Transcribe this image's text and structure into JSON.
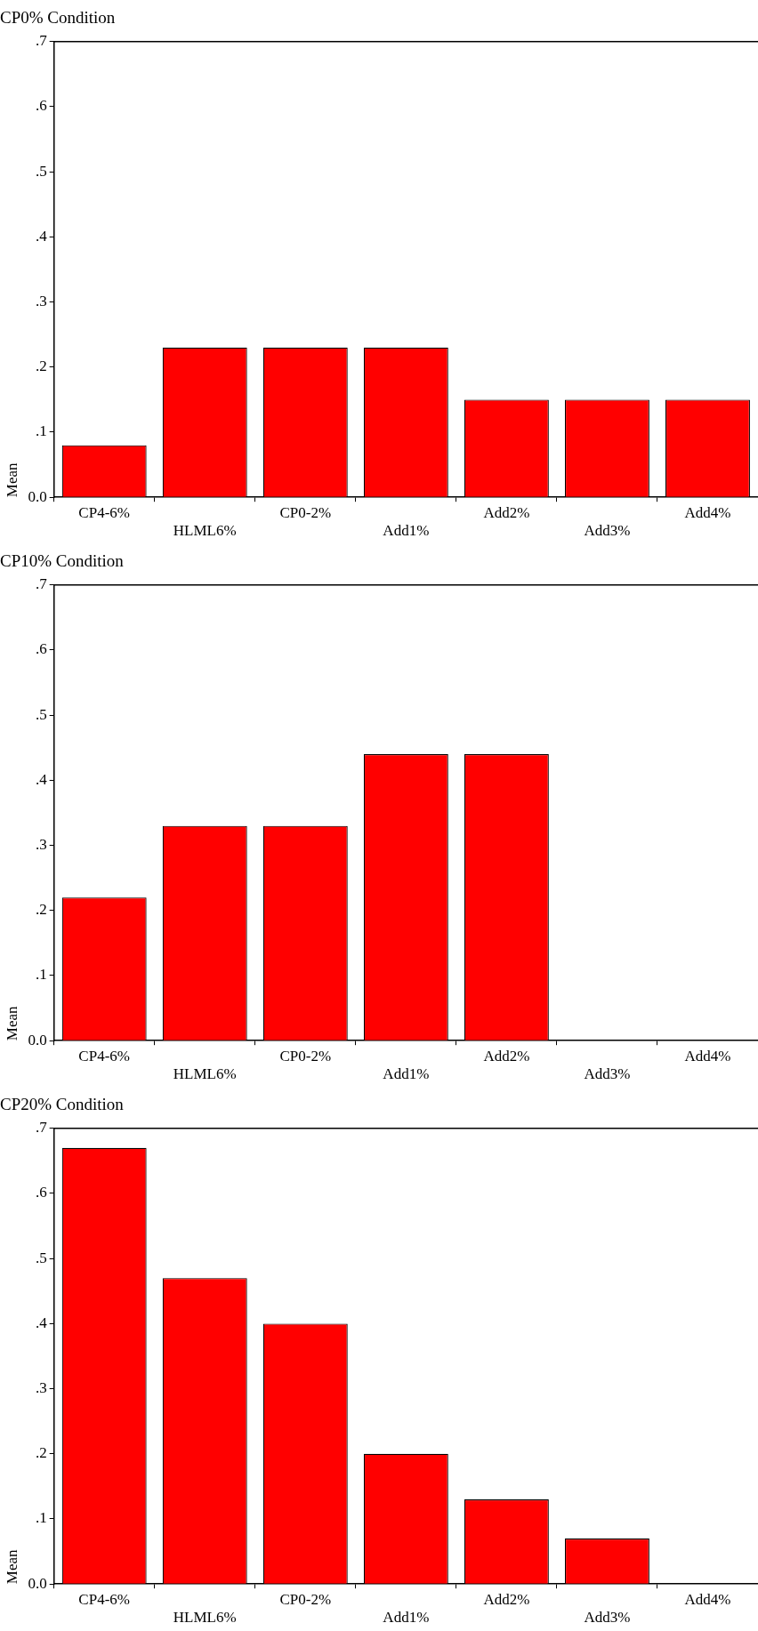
{
  "chart_data": [
    {
      "type": "bar",
      "title": "CP0% Condition",
      "ylabel": "Mean",
      "categories": [
        "CP4-6%",
        "HLML6%",
        "CP0-2%",
        "Add1%",
        "Add2%",
        "Add3%",
        "Add4%"
      ],
      "values": [
        0.08,
        0.23,
        0.23,
        0.23,
        0.15,
        0.15,
        0.15
      ],
      "color": "#ff0000",
      "ylim": [
        0,
        0.7
      ],
      "yticks": [
        {
          "value": 0,
          "label": "0.0"
        },
        {
          "value": 0.1,
          "label": ".1"
        },
        {
          "value": 0.2,
          "label": ".2"
        },
        {
          "value": 0.3,
          "label": ".3"
        },
        {
          "value": 0.4,
          "label": ".4"
        },
        {
          "value": 0.5,
          "label": ".5"
        },
        {
          "value": 0.6,
          "label": ".6"
        },
        {
          "value": 0.7,
          "label": ".7"
        }
      ],
      "grid": false,
      "legend": false
    },
    {
      "type": "bar",
      "title": "CP10% Condition",
      "ylabel": "Mean",
      "categories": [
        "CP4-6%",
        "HLML6%",
        "CP0-2%",
        "Add1%",
        "Add2%",
        "Add3%",
        "Add4%"
      ],
      "values": [
        0.22,
        0.33,
        0.33,
        0.44,
        0.44,
        0,
        0
      ],
      "color": "#ff0000",
      "ylim": [
        0,
        0.7
      ],
      "yticks": [
        {
          "value": 0,
          "label": "0.0"
        },
        {
          "value": 0.1,
          "label": ".1"
        },
        {
          "value": 0.2,
          "label": ".2"
        },
        {
          "value": 0.3,
          "label": ".3"
        },
        {
          "value": 0.4,
          "label": ".4"
        },
        {
          "value": 0.5,
          "label": ".5"
        },
        {
          "value": 0.6,
          "label": ".6"
        },
        {
          "value": 0.7,
          "label": ".7"
        }
      ],
      "grid": false,
      "legend": false
    },
    {
      "type": "bar",
      "title": "CP20% Condition",
      "ylabel": "Mean",
      "categories": [
        "CP4-6%",
        "HLML6%",
        "CP0-2%",
        "Add1%",
        "Add2%",
        "Add3%",
        "Add4%"
      ],
      "values": [
        0.67,
        0.47,
        0.4,
        0.2,
        0.13,
        0.07,
        0
      ],
      "color": "#ff0000",
      "ylim": [
        0,
        0.7
      ],
      "yticks": [
        {
          "value": 0,
          "label": "0.0"
        },
        {
          "value": 0.1,
          "label": ".1"
        },
        {
          "value": 0.2,
          "label": ".2"
        },
        {
          "value": 0.3,
          "label": ".3"
        },
        {
          "value": 0.4,
          "label": ".4"
        },
        {
          "value": 0.5,
          "label": ".5"
        },
        {
          "value": 0.6,
          "label": ".6"
        },
        {
          "value": 0.7,
          "label": ".7"
        }
      ],
      "grid": false,
      "legend": false
    }
  ]
}
